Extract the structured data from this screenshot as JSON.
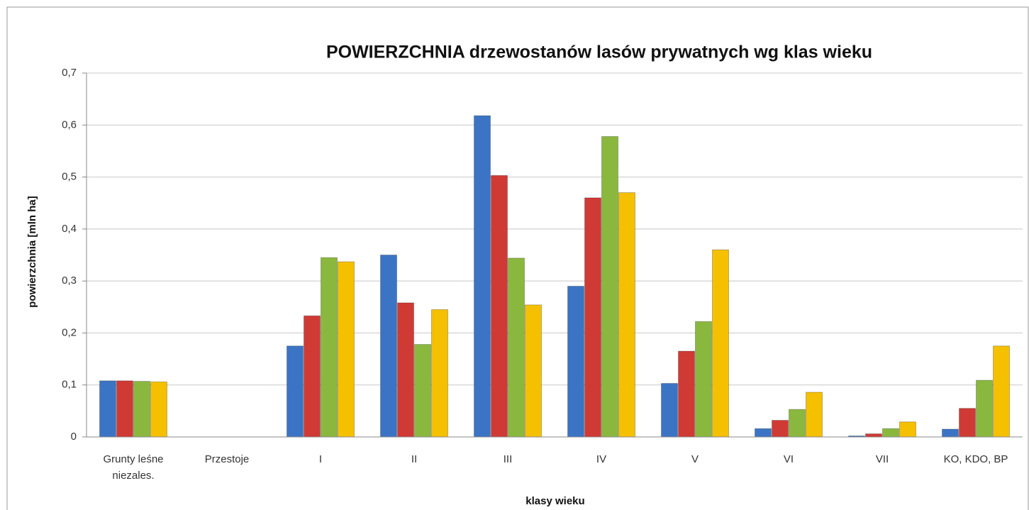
{
  "chart_data": {
    "type": "bar",
    "title": "POWIERZCHNIA drzewostanów lasów prywatnych wg klas wieku",
    "xlabel": "klasy wieku",
    "ylabel": "powierzchnia [mln ha]",
    "categories": [
      "Grunty leśne niezales.",
      "Przestoje",
      "I",
      "II",
      "III",
      "IV",
      "V",
      "VI",
      "VII",
      "KO, KDO, BP"
    ],
    "series": [
      {
        "color": "#3b74c4",
        "values": [
          0.108,
          0,
          0.175,
          0.35,
          0.618,
          0.29,
          0.103,
          0.016,
          0.002,
          0.015
        ]
      },
      {
        "color": "#d03a35",
        "values": [
          0.108,
          0,
          0.233,
          0.258,
          0.503,
          0.46,
          0.165,
          0.032,
          0.006,
          0.055
        ]
      },
      {
        "color": "#8ab83e",
        "values": [
          0.107,
          0,
          0.345,
          0.178,
          0.344,
          0.578,
          0.222,
          0.053,
          0.016,
          0.109
        ]
      },
      {
        "color": "#f5c000",
        "values": [
          0.106,
          0,
          0.337,
          0.245,
          0.254,
          0.47,
          0.36,
          0.086,
          0.029,
          0.175
        ]
      }
    ],
    "ylim": [
      0,
      0.7
    ],
    "yticks": [
      0,
      {
        "value": 0.1,
        "label": "0,1"
      },
      {
        "value": 0.2,
        "label": "0,2"
      },
      {
        "value": 0.3,
        "label": "0,3"
      },
      {
        "value": 0.4,
        "label": "0,4"
      },
      {
        "value": 0.5,
        "label": "0,5"
      },
      {
        "value": 0.6,
        "label": "0,6"
      },
      {
        "value": 0.7,
        "label": "0,7"
      }
    ],
    "grid": true
  }
}
